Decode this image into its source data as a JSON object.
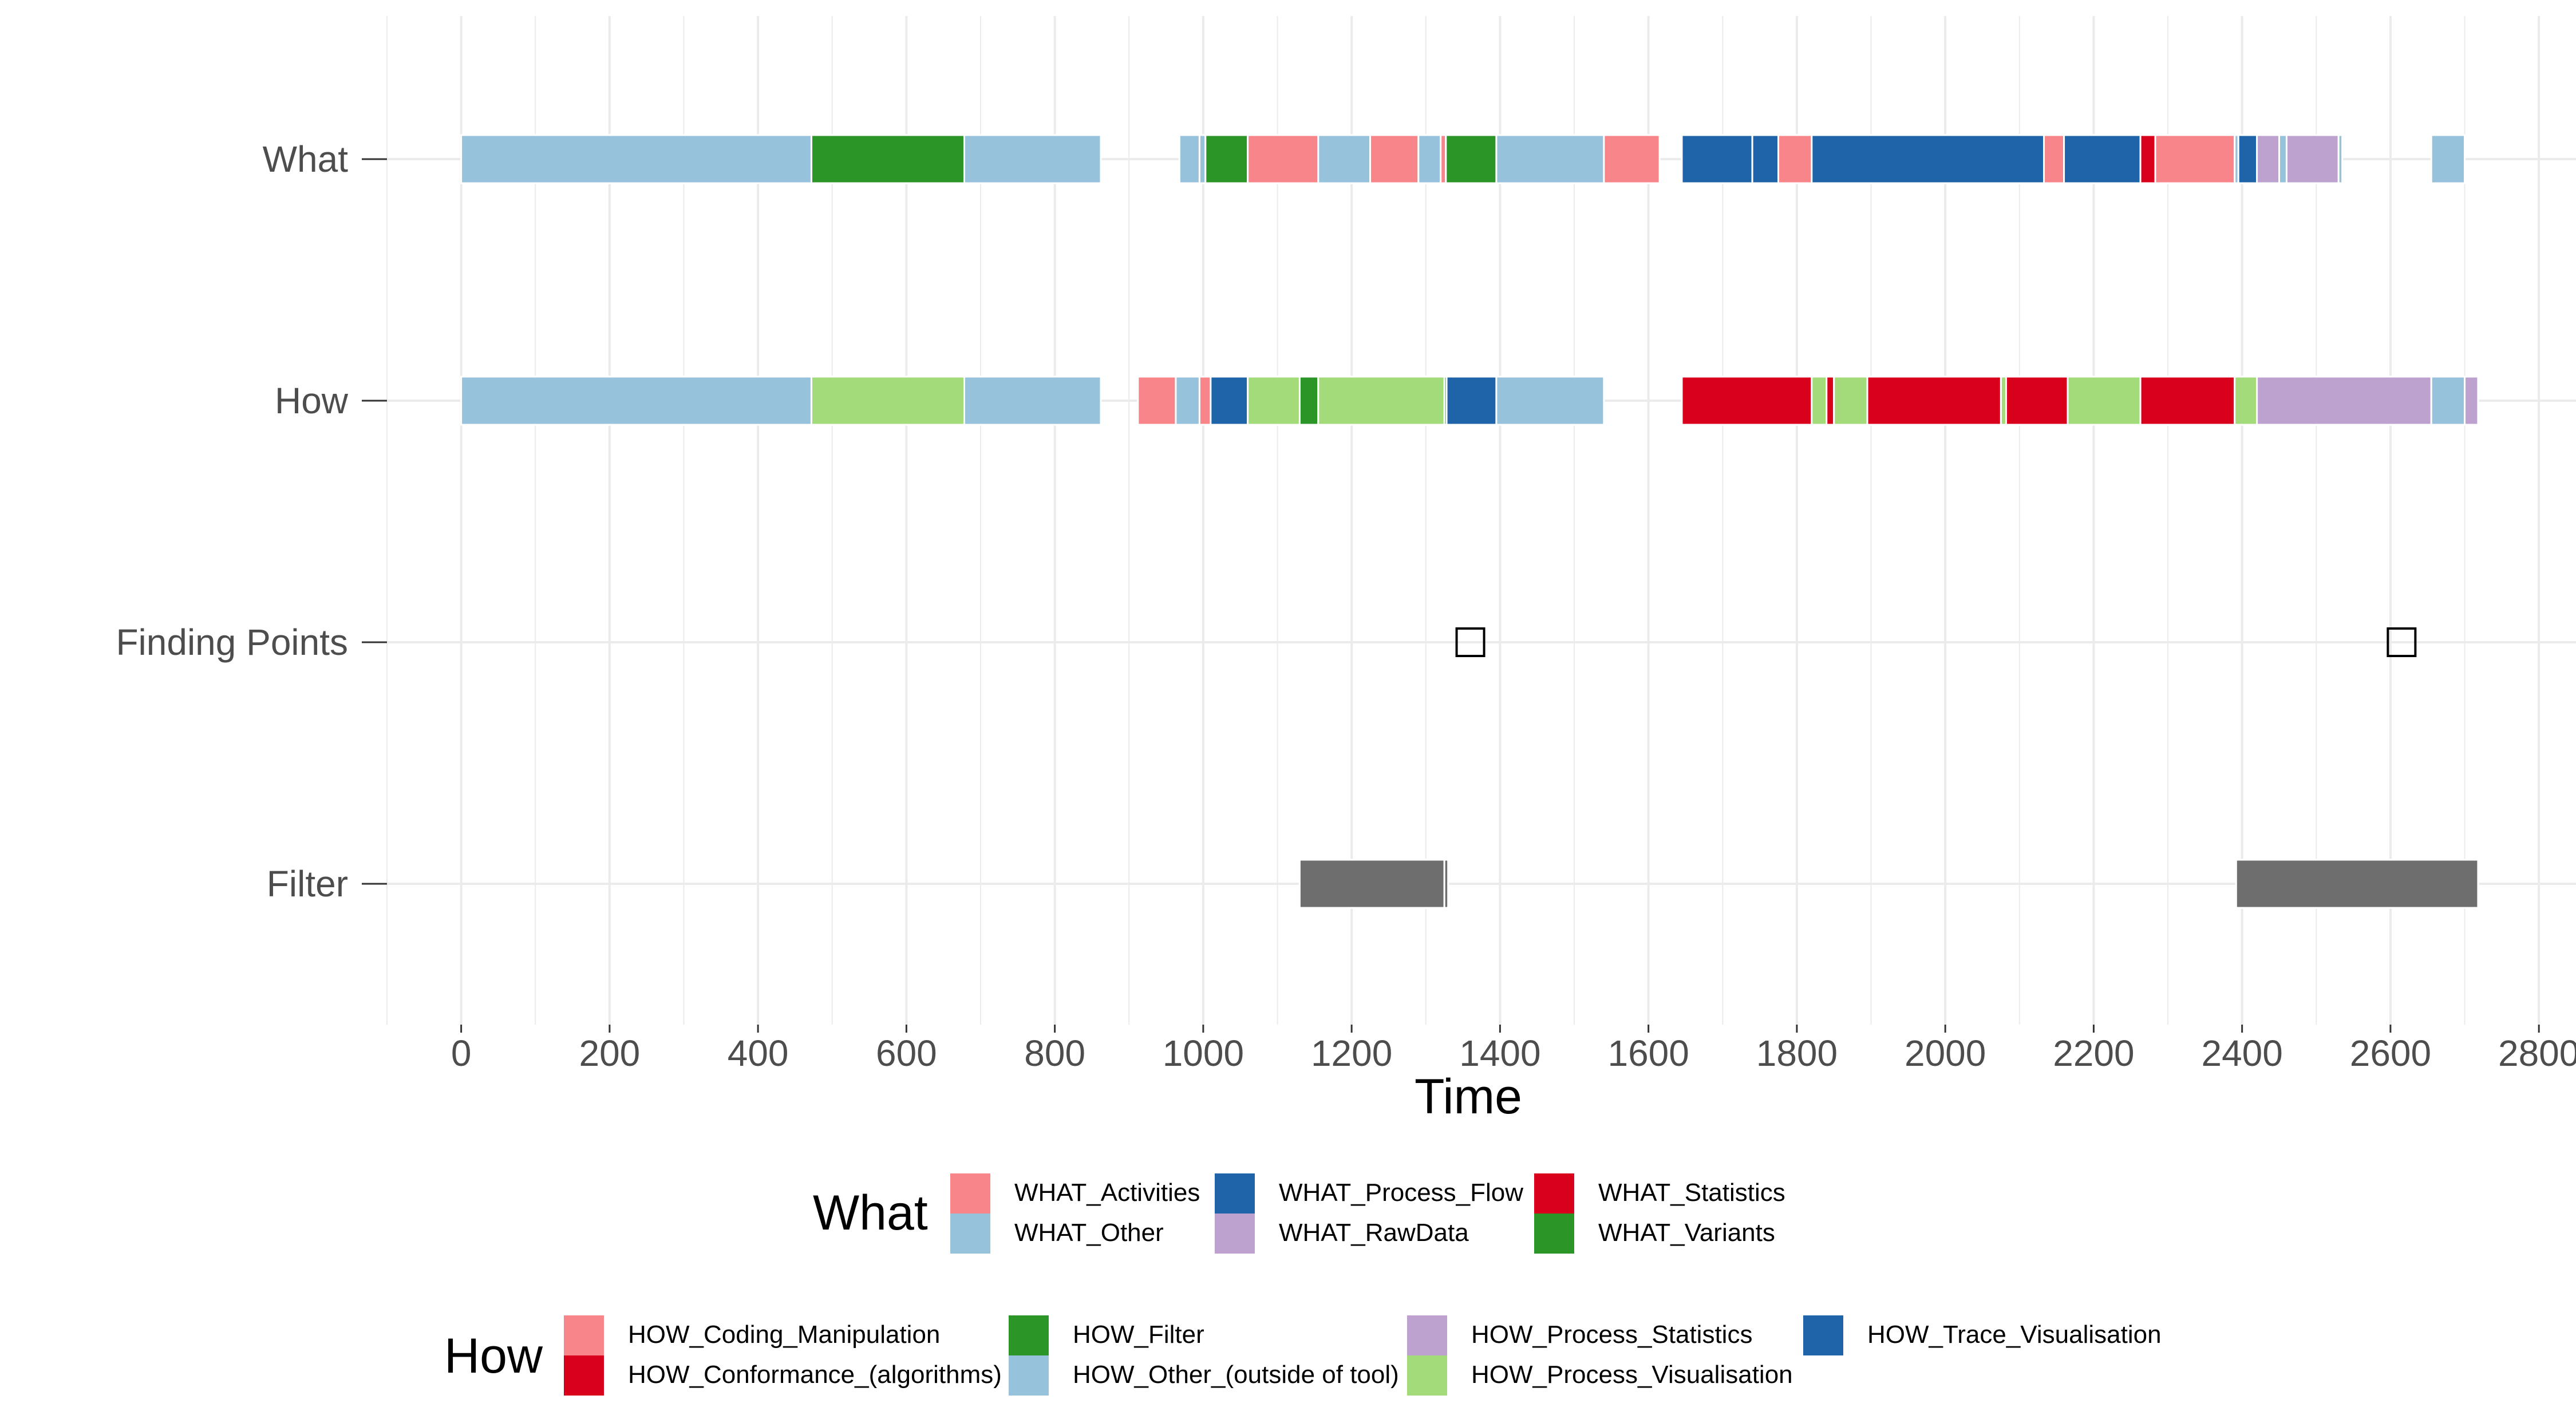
{
  "chart_data": {
    "type": "timeline",
    "xlabel": "Time",
    "x_ticks": [
      0,
      200,
      400,
      600,
      800,
      1000,
      1200,
      1400,
      1600,
      1800,
      2000,
      2200,
      2400,
      2600,
      2800
    ],
    "xlim": [
      -100,
      2850
    ],
    "rows": [
      "What",
      "How",
      "Finding Points",
      "Filter"
    ],
    "colors": {
      "WHAT_Activities": "#F8858A",
      "WHAT_Other": "#96C2DC",
      "WHAT_Process_Flow": "#1F64A8",
      "WHAT_RawData": "#BDA1CF",
      "WHAT_Statistics": "#D9001C",
      "WHAT_Variants": "#2C9528",
      "HOW_Coding_Manipulation": "#F8858A",
      "HOW_Conformance_(algorithms)": "#D9001C",
      "HOW_Filter": "#2C9528",
      "HOW_Other_(outside of tool)": "#96C2DC",
      "HOW_Process_Statistics": "#BDA1CF",
      "HOW_Process_Visualisation": "#A3DB7A",
      "HOW_Trace_Visualisation": "#1F64A8",
      "Filter": "#6E6E6E"
    },
    "what_segments": [
      {
        "start": 0,
        "end": 472,
        "category": "WHAT_Other"
      },
      {
        "start": 472,
        "end": 678,
        "category": "WHAT_Variants"
      },
      {
        "start": 678,
        "end": 862,
        "category": "WHAT_Other"
      },
      {
        "start": 968,
        "end": 995,
        "category": "WHAT_Other"
      },
      {
        "start": 995,
        "end": 1003,
        "category": "WHAT_Other"
      },
      {
        "start": 1003,
        "end": 1060,
        "category": "WHAT_Variants"
      },
      {
        "start": 1060,
        "end": 1155,
        "category": "WHAT_Activities"
      },
      {
        "start": 1155,
        "end": 1225,
        "category": "WHAT_Other"
      },
      {
        "start": 1225,
        "end": 1290,
        "category": "WHAT_Activities"
      },
      {
        "start": 1290,
        "end": 1320,
        "category": "WHAT_Other"
      },
      {
        "start": 1320,
        "end": 1327,
        "category": "WHAT_Activities"
      },
      {
        "start": 1327,
        "end": 1395,
        "category": "WHAT_Variants"
      },
      {
        "start": 1395,
        "end": 1540,
        "category": "WHAT_Other"
      },
      {
        "start": 1540,
        "end": 1615,
        "category": "WHAT_Activities"
      },
      {
        "start": 1645,
        "end": 1740,
        "category": "WHAT_Process_Flow"
      },
      {
        "start": 1740,
        "end": 1775,
        "category": "WHAT_Process_Flow"
      },
      {
        "start": 1775,
        "end": 1820,
        "category": "WHAT_Activities"
      },
      {
        "start": 1820,
        "end": 2133,
        "category": "WHAT_Process_Flow"
      },
      {
        "start": 2133,
        "end": 2160,
        "category": "WHAT_Activities"
      },
      {
        "start": 2160,
        "end": 2263,
        "category": "WHAT_Process_Flow"
      },
      {
        "start": 2263,
        "end": 2283,
        "category": "WHAT_Statistics"
      },
      {
        "start": 2283,
        "end": 2390,
        "category": "WHAT_Activities"
      },
      {
        "start": 2390,
        "end": 2395,
        "category": "WHAT_Other"
      },
      {
        "start": 2395,
        "end": 2420,
        "category": "WHAT_Process_Flow"
      },
      {
        "start": 2420,
        "end": 2450,
        "category": "WHAT_RawData"
      },
      {
        "start": 2450,
        "end": 2460,
        "category": "WHAT_Other"
      },
      {
        "start": 2460,
        "end": 2530,
        "category": "WHAT_RawData"
      },
      {
        "start": 2530,
        "end": 2535,
        "category": "WHAT_Other"
      },
      {
        "start": 2655,
        "end": 2700,
        "category": "WHAT_Other"
      }
    ],
    "how_segments": [
      {
        "start": 0,
        "end": 472,
        "category": "HOW_Other_(outside of tool)"
      },
      {
        "start": 472,
        "end": 678,
        "category": "HOW_Process_Visualisation"
      },
      {
        "start": 678,
        "end": 862,
        "category": "HOW_Other_(outside of tool)"
      },
      {
        "start": 912,
        "end": 963,
        "category": "HOW_Coding_Manipulation"
      },
      {
        "start": 963,
        "end": 995,
        "category": "HOW_Other_(outside of tool)"
      },
      {
        "start": 995,
        "end": 1010,
        "category": "HOW_Coding_Manipulation"
      },
      {
        "start": 1010,
        "end": 1060,
        "category": "HOW_Trace_Visualisation"
      },
      {
        "start": 1060,
        "end": 1130,
        "category": "HOW_Process_Visualisation"
      },
      {
        "start": 1130,
        "end": 1155,
        "category": "HOW_Filter"
      },
      {
        "start": 1155,
        "end": 1325,
        "category": "HOW_Process_Visualisation"
      },
      {
        "start": 1325,
        "end": 1328,
        "category": "HOW_Filter"
      },
      {
        "start": 1328,
        "end": 1395,
        "category": "HOW_Trace_Visualisation"
      },
      {
        "start": 1395,
        "end": 1540,
        "category": "HOW_Other_(outside of tool)"
      },
      {
        "start": 1645,
        "end": 1820,
        "category": "HOW_Conformance_(algorithms)"
      },
      {
        "start": 1820,
        "end": 1840,
        "category": "HOW_Process_Visualisation"
      },
      {
        "start": 1840,
        "end": 1850,
        "category": "HOW_Conformance_(algorithms)"
      },
      {
        "start": 1850,
        "end": 1895,
        "category": "HOW_Process_Visualisation"
      },
      {
        "start": 1895,
        "end": 2075,
        "category": "HOW_Conformance_(algorithms)"
      },
      {
        "start": 2075,
        "end": 2082,
        "category": "HOW_Process_Visualisation"
      },
      {
        "start": 2082,
        "end": 2165,
        "category": "HOW_Conformance_(algorithms)"
      },
      {
        "start": 2165,
        "end": 2263,
        "category": "HOW_Process_Visualisation"
      },
      {
        "start": 2263,
        "end": 2390,
        "category": "HOW_Conformance_(algorithms)"
      },
      {
        "start": 2390,
        "end": 2420,
        "category": "HOW_Process_Visualisation"
      },
      {
        "start": 2420,
        "end": 2655,
        "category": "HOW_Process_Statistics"
      },
      {
        "start": 2655,
        "end": 2700,
        "category": "HOW_Other_(outside of tool)"
      },
      {
        "start": 2700,
        "end": 2718,
        "category": "HOW_Process_Statistics"
      }
    ],
    "finding_points": [
      1360,
      2615
    ],
    "filter_segments": [
      {
        "start": 1130,
        "end": 1325
      },
      {
        "start": 1325,
        "end": 1330
      },
      {
        "start": 2392,
        "end": 2718
      }
    ],
    "legends": [
      {
        "title": "What",
        "items": [
          "WHAT_Activities",
          "WHAT_Other",
          "WHAT_Process_Flow",
          "WHAT_RawData",
          "WHAT_Statistics",
          "WHAT_Variants"
        ]
      },
      {
        "title": "How",
        "items": [
          "HOW_Coding_Manipulation",
          "HOW_Conformance_(algorithms)",
          "HOW_Filter",
          "HOW_Other_(outside of tool)",
          "HOW_Process_Statistics",
          "HOW_Process_Visualisation",
          "HOW_Trace_Visualisation"
        ]
      }
    ],
    "legend_placement": "bottom",
    "grid": true
  }
}
